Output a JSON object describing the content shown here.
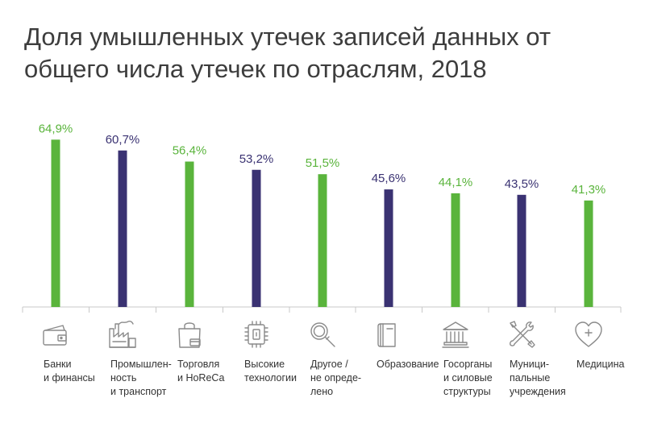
{
  "chart_data": {
    "type": "bar",
    "title": "Доля умышленных утечек записей данных от общего числа утечек по отраслям, 2018",
    "categories": [
      "Банки\nи финансы",
      "Промышлен-\nность\nи транспорт",
      "Торговля\nи HoReCa",
      "Высокие\nтехнологии",
      "Другое /\nне опреде-\nлено",
      "Образование",
      "Госорганы\nи силовые\nструктуры",
      "Муници-\nпальные\nучреждения",
      "Медицина"
    ],
    "values": [
      64.9,
      60.7,
      56.4,
      53.2,
      51.5,
      45.6,
      44.1,
      43.5,
      41.3
    ],
    "value_labels": [
      "64,9%",
      "60,7%",
      "56,4%",
      "53,2%",
      "51,5%",
      "45,6%",
      "44,1%",
      "43,5%",
      "41,3%"
    ],
    "bar_colors": [
      "#5ab43c",
      "#3a3272",
      "#5ab43c",
      "#3a3272",
      "#5ab43c",
      "#3a3272",
      "#5ab43c",
      "#3a3272",
      "#5ab43c"
    ],
    "icons": [
      "wallet-icon",
      "factory-icon",
      "shopping-bag-icon",
      "microchip-icon",
      "magnifier-icon",
      "book-icon",
      "government-building-icon",
      "tools-icon",
      "heart-cross-icon"
    ],
    "grid": false,
    "legend": "none",
    "xlabel": "",
    "ylabel": ""
  },
  "colors": {
    "green": "#5ab43c",
    "purple": "#3a3272",
    "axis": "#c8c8c8",
    "title": "#3d3d3d",
    "icon": "#8a8a8a"
  }
}
